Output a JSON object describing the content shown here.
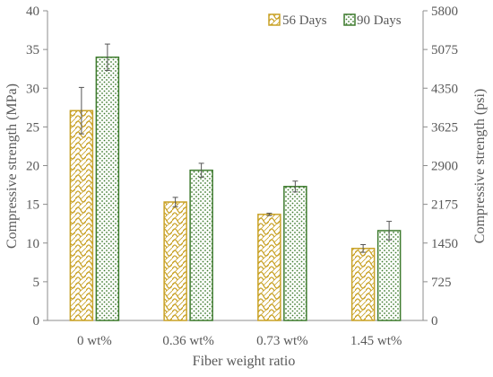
{
  "chart_data": {
    "type": "bar",
    "categories": [
      "0 wt%",
      "0.36 wt%",
      "0.73 wt%",
      "1.45 wt%"
    ],
    "series": [
      {
        "name": "56 Days",
        "values": [
          27.1,
          15.3,
          13.7,
          9.3
        ],
        "error": [
          3.0,
          0.6,
          0.15,
          0.5
        ],
        "color": "#C9A227",
        "pattern": "wave-hatch"
      },
      {
        "name": "90 Days",
        "values": [
          34.0,
          19.4,
          17.3,
          11.6
        ],
        "error": [
          1.7,
          0.9,
          0.7,
          1.2
        ],
        "color": "#3E7B2E",
        "pattern": "dots"
      }
    ],
    "xlabel": "Fiber weight ratio",
    "ylabel": "Compressive strength (MPa)",
    "ylabel_right": "Compressive strength (psi)",
    "ylim": [
      0,
      40
    ],
    "yticks": [
      "0",
      "5",
      "10",
      "15",
      "20",
      "25",
      "30",
      "35",
      "40"
    ],
    "ylim_right": [
      0,
      5800
    ],
    "yticks_right": [
      "0",
      "725",
      "1450",
      "2175",
      "2900",
      "3625",
      "4350",
      "5075",
      "5800"
    ],
    "grid": false,
    "legend_position": "top-right",
    "error_bars": true
  }
}
